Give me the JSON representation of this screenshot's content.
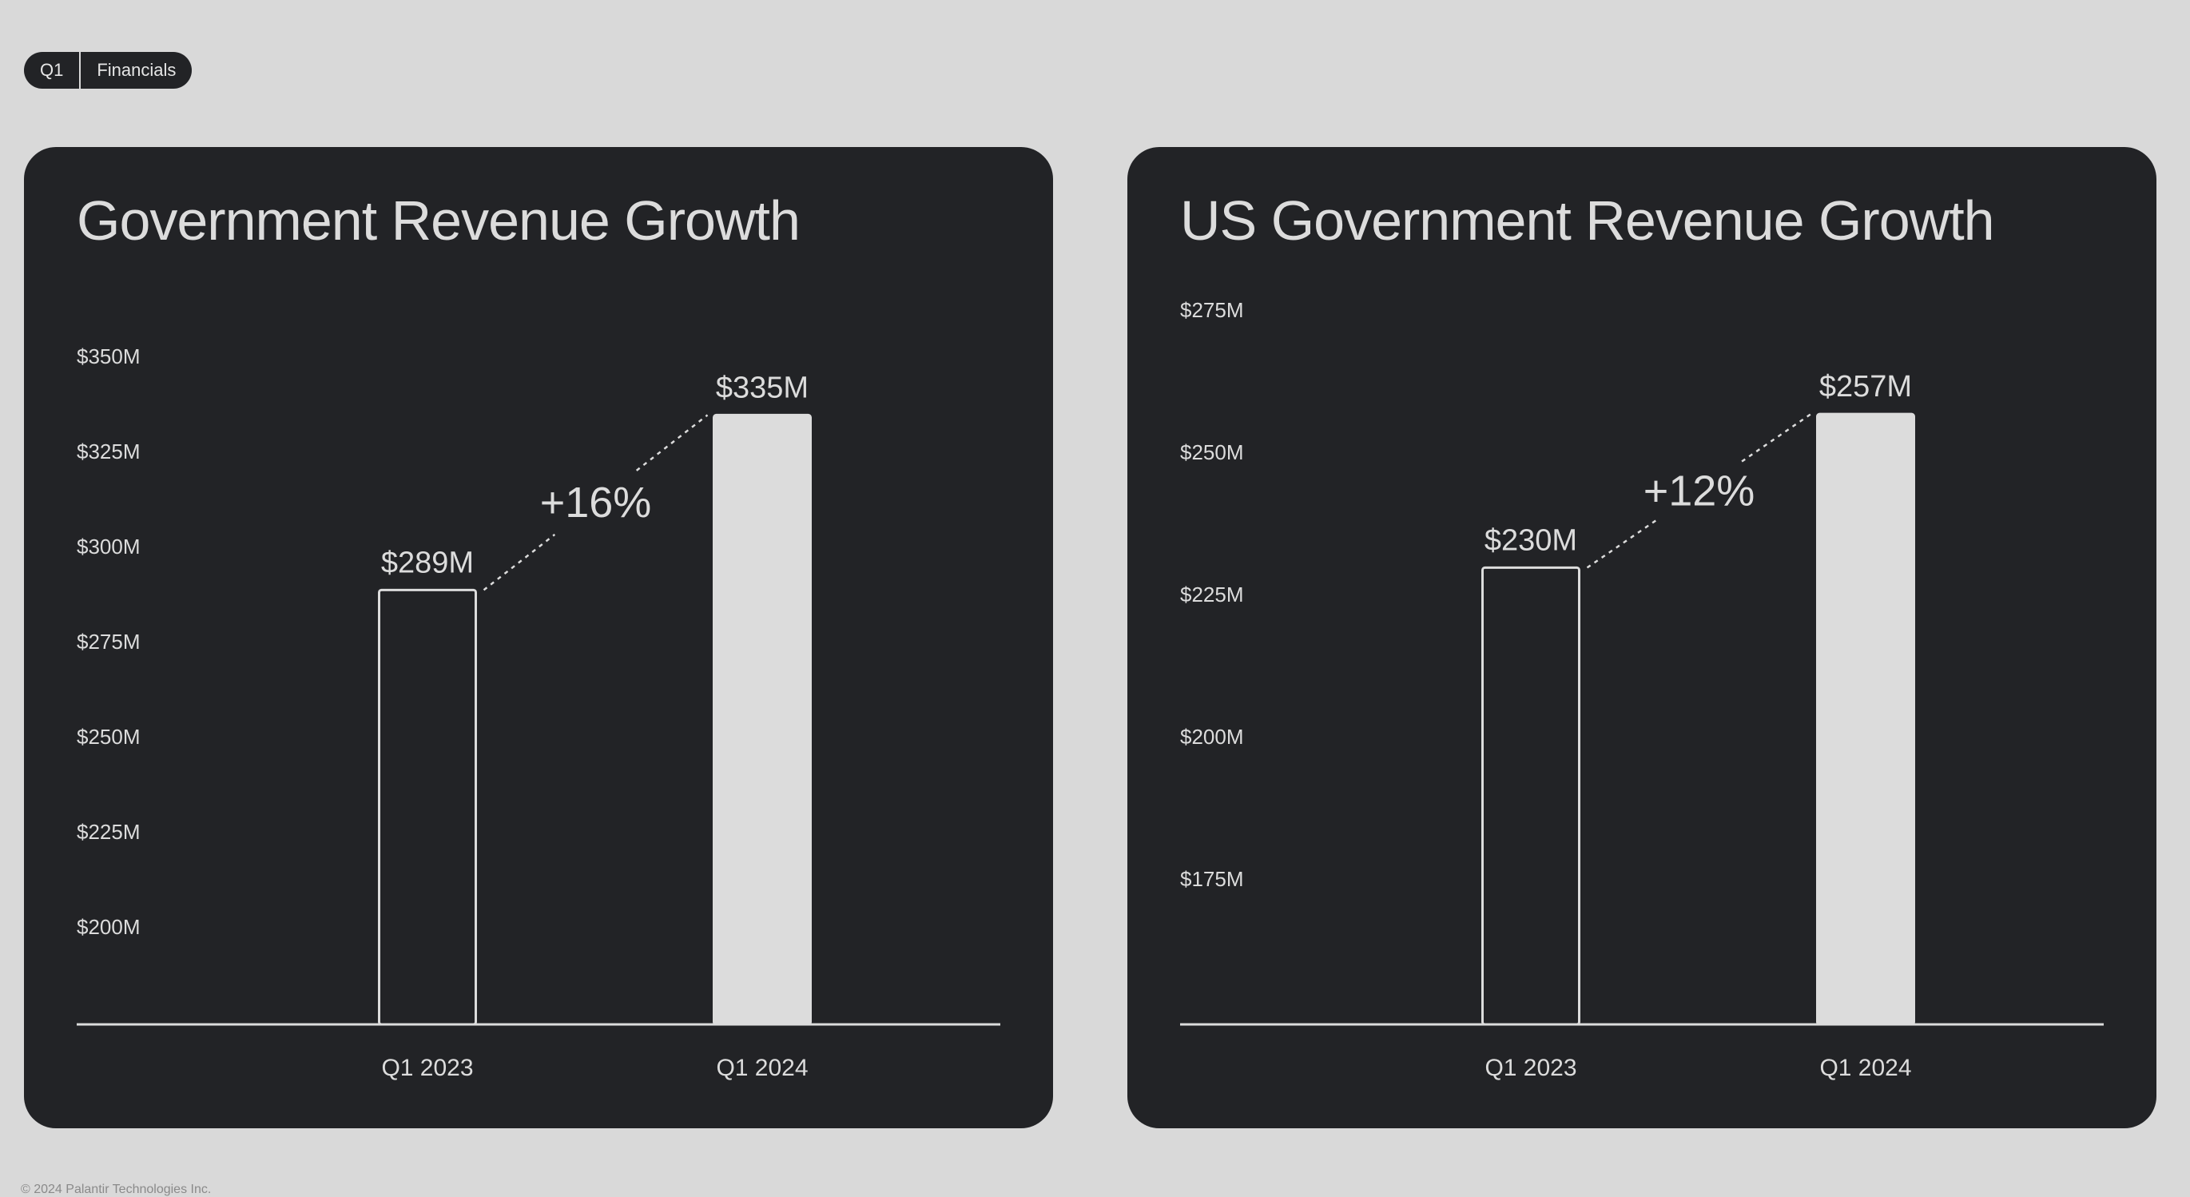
{
  "header": {
    "tag_left": "Q1",
    "tag_right": "Financials"
  },
  "colors": {
    "background": "#d9d9d9",
    "card": "#222326",
    "foreground": "#dcdcdc"
  },
  "chart_data": [
    {
      "type": "bar",
      "title": "Government Revenue Growth",
      "categories": [
        "Q1 2023",
        "Q1 2024"
      ],
      "values": [
        289,
        335
      ],
      "value_labels": [
        "$289M",
        "$335M"
      ],
      "growth_label": "+16%",
      "yticks": [
        200,
        225,
        250,
        275,
        300,
        325,
        350
      ],
      "ytick_labels": [
        "$200M",
        "$225M",
        "$250M",
        "$275M",
        "$300M",
        "$325M",
        "$350M"
      ],
      "ylim": [
        175,
        350
      ],
      "bar_styles": [
        "outline",
        "filled"
      ],
      "grid": false
    },
    {
      "type": "bar",
      "title": "US Government Revenue Growth",
      "categories": [
        "Q1 2023",
        "Q1 2024"
      ],
      "values": [
        230,
        257
      ],
      "value_labels": [
        "$230M",
        "$257M"
      ],
      "growth_label": "+12%",
      "yticks": [
        175,
        200,
        225,
        250,
        275
      ],
      "ytick_labels": [
        "$175M",
        "$200M",
        "$225M",
        "$250M",
        "$275M"
      ],
      "ylim": [
        150,
        275
      ],
      "bar_styles": [
        "outline",
        "filled"
      ],
      "grid": false
    }
  ],
  "footer": {
    "copyright": "© 2024 Palantir Technologies Inc."
  }
}
